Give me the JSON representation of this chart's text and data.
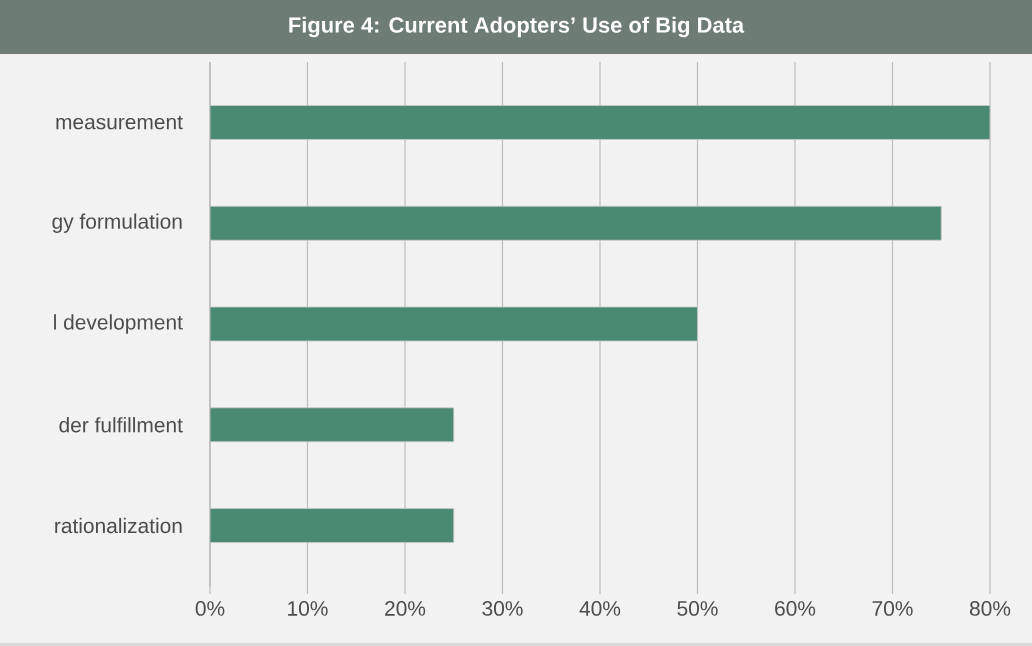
{
  "chart_data": {
    "type": "bar",
    "orientation": "horizontal",
    "title": "Figure 4: Current Adopters’ Use of Big Data",
    "categories": [
      "measurement",
      "gy formulation",
      "l development",
      "der fulfillment",
      "rationalization"
    ],
    "values": [
      80,
      75,
      50,
      25,
      25
    ],
    "color": "#4a8a72",
    "xlim": [
      0,
      80
    ],
    "xticks": [
      {
        "value": 0,
        "label": "0%"
      },
      {
        "value": 10,
        "label": "10%"
      },
      {
        "value": 20,
        "label": "20%"
      },
      {
        "value": 30,
        "label": "30%"
      },
      {
        "value": 40,
        "label": "40%"
      },
      {
        "value": 50,
        "label": "50%"
      },
      {
        "value": 60,
        "label": "60%"
      },
      {
        "value": 70,
        "label": "70%"
      },
      {
        "value": 80,
        "label": "80%"
      }
    ],
    "grid": "x"
  }
}
